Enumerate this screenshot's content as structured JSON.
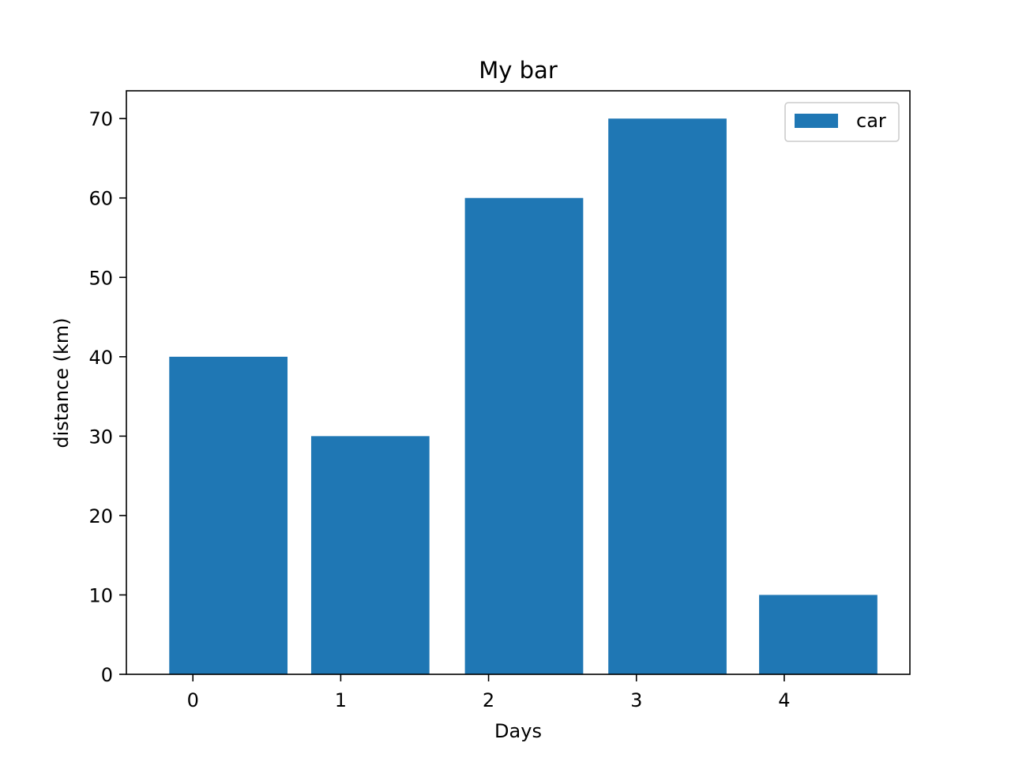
{
  "chart_data": {
    "type": "bar",
    "title": "My bar",
    "xlabel": "Days",
    "ylabel": "distance (km)",
    "xlim": [
      -0.45,
      4.85
    ],
    "ylim": [
      0,
      73.5
    ],
    "x_ticks": [
      0,
      1,
      2,
      3,
      4
    ],
    "y_ticks": [
      0,
      10,
      20,
      30,
      40,
      50,
      60,
      70
    ],
    "grid": false,
    "legend_position": "upper right",
    "bars": [
      {
        "left": -0.16,
        "right": 0.64,
        "value": 40
      },
      {
        "left": 0.8,
        "right": 1.6,
        "value": 30
      },
      {
        "left": 1.84,
        "right": 2.64,
        "value": 60
      },
      {
        "left": 2.81,
        "right": 3.61,
        "value": 70
      },
      {
        "left": 3.83,
        "right": 4.63,
        "value": 10
      }
    ],
    "series": [
      {
        "name": "car",
        "color": "#1f77b4",
        "values": [
          40,
          30,
          60,
          70,
          10
        ]
      }
    ]
  }
}
